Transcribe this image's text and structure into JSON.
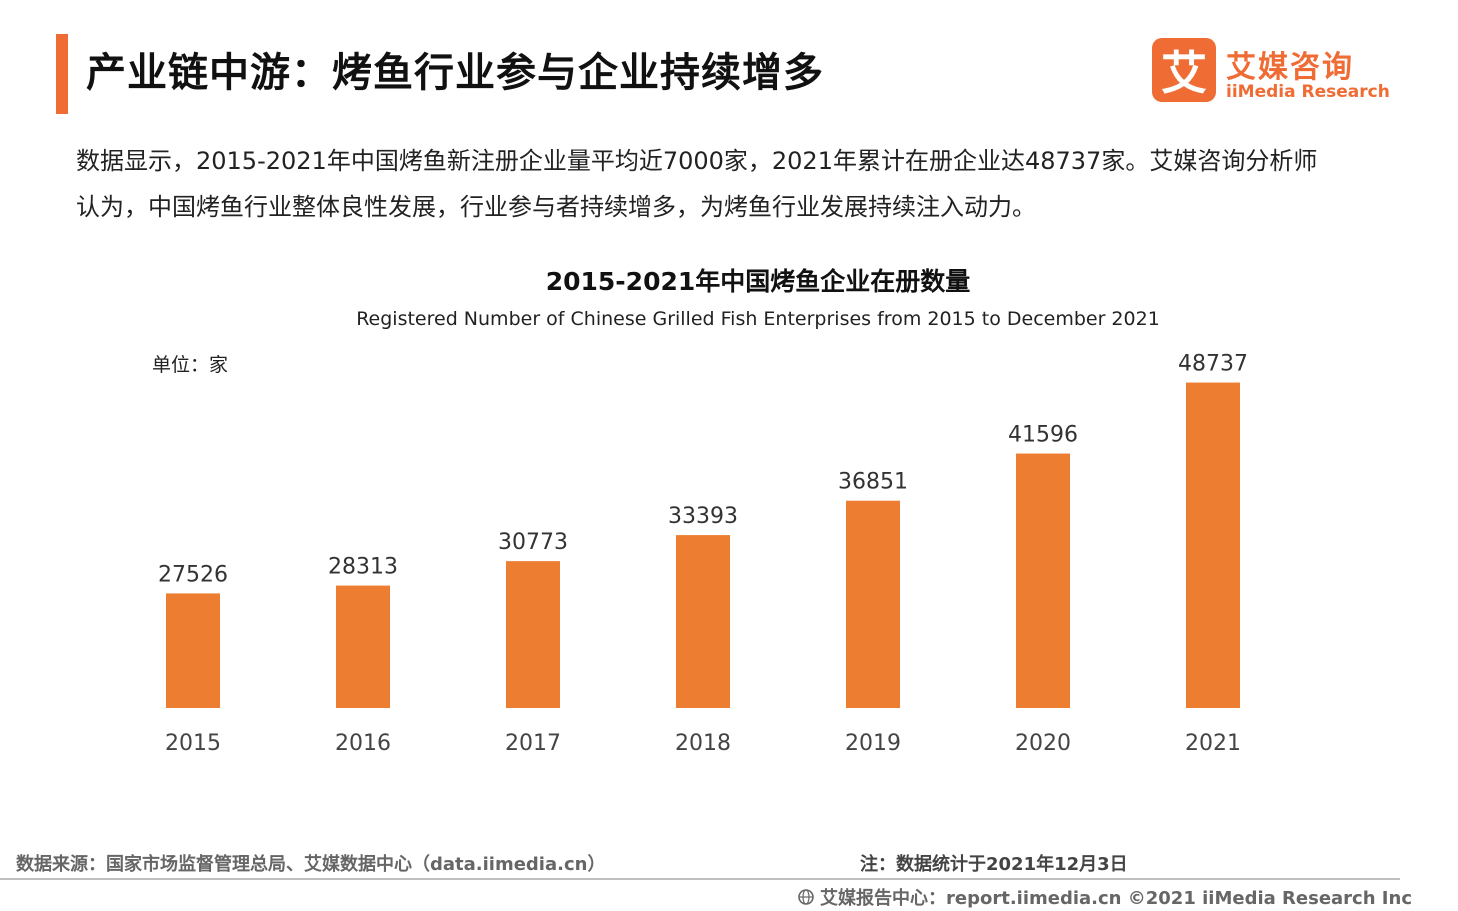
{
  "header": {
    "title": "产业链中游：烤鱼行业参与企业持续增多"
  },
  "logo": {
    "mark": "艾",
    "cn": "艾媒咨询",
    "en": "iiMedia Research"
  },
  "description": "数据显示，2015-2021年中国烤鱼新注册企业量平均近7000家，2021年累计在册企业达48737家。艾媒咨询分析师认为，中国烤鱼行业整体良性发展，行业参与者持续增多，为烤鱼行业发展持续注入动力。",
  "chart_data": {
    "type": "bar",
    "title": "2015-2021年中国烤鱼企业在册数量",
    "subtitle": "Registered Number of Chinese Grilled Fish Enterprises from 2015 to December 2021",
    "unit_label": "单位：家",
    "categories": [
      "2015",
      "2016",
      "2017",
      "2018",
      "2019",
      "2020",
      "2021"
    ],
    "values": [
      27526,
      28313,
      30773,
      33393,
      36851,
      41596,
      48737
    ],
    "ylim": [
      16000,
      50000
    ],
    "grid": false,
    "color": "#ed7d31"
  },
  "footer": {
    "source": "数据来源：国家市场监督管理总局、艾媒数据中心（data.iimedia.cn）",
    "note": "注：数据统计于2021年12月3日",
    "copyright": "艾媒报告中心：report.iimedia.cn   ©2021  iiMedia Research  Inc"
  },
  "colors": {
    "accent": "#ef6c35",
    "bar": "#ed7d31"
  }
}
